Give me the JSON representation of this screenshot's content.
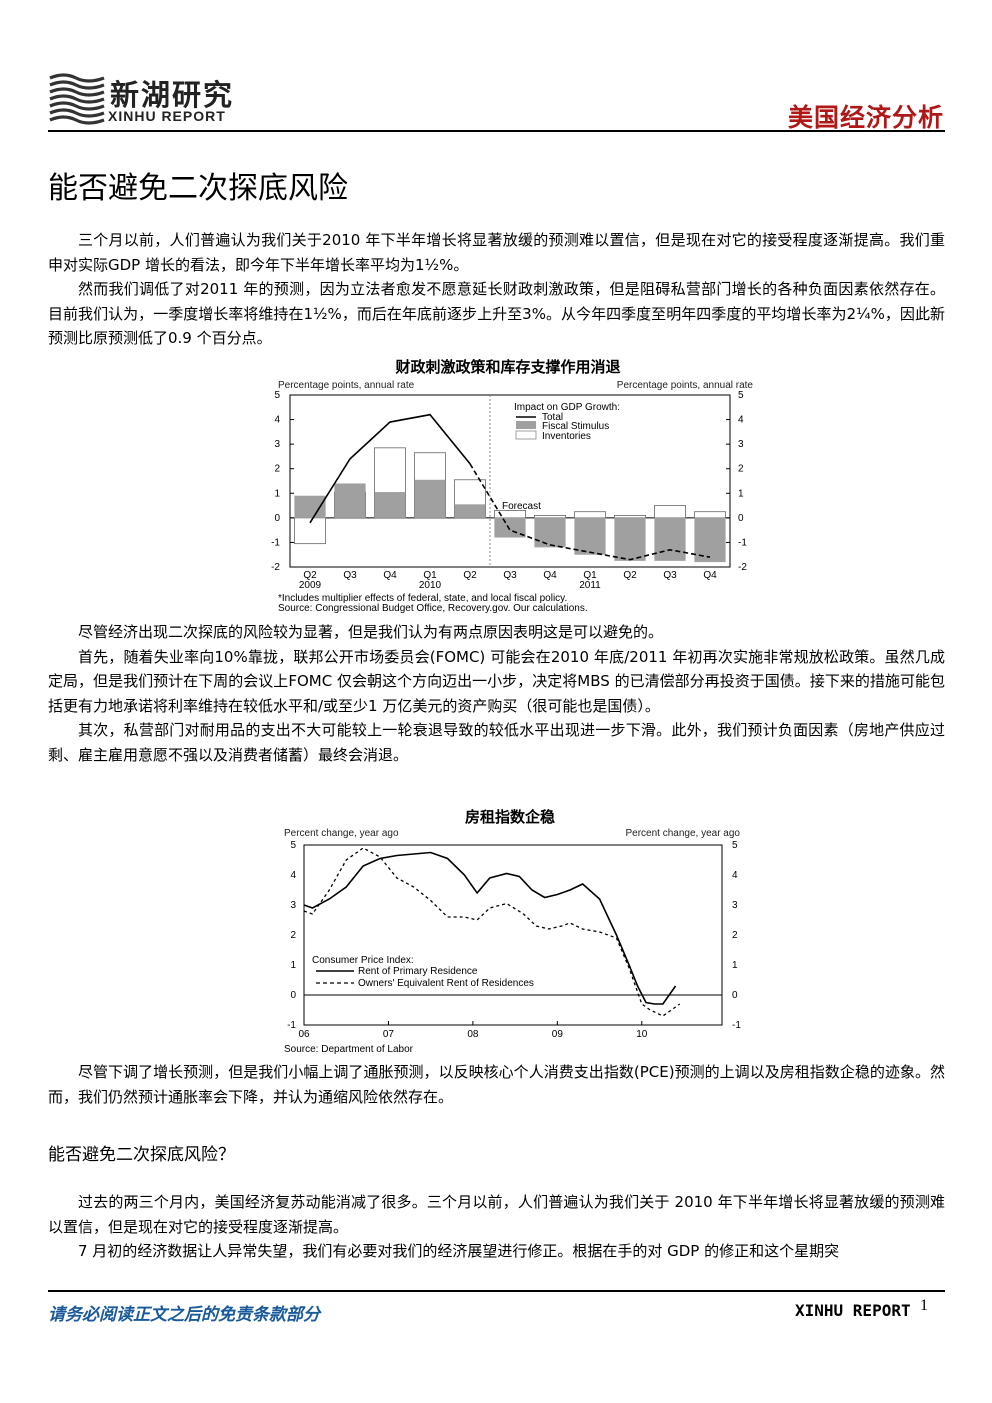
{
  "header": {
    "logo_cn": "新湖研究",
    "logo_en": "XINHU REPORT",
    "section": "美国经济分析"
  },
  "title": "能否避免二次探底风险",
  "paragraphs_a": [
    "三个月以前，人们普遍认为我们关于2010 年下半年增长将显著放缓的预测难以置信，但是现在对它的接受程度逐渐提高。我们重申对实际GDP 增长的看法，即今年下半年增长率平均为1½%。",
    "然而我们调低了对2011 年的预测，因为立法者愈发不愿意延长财政刺激政策，但是阻碍私营部门增长的各种负面因素依然存在。目前我们认为，一季度增长率将维持在1½%，而后在年底前逐步上升至3%。从今年四季度至明年四季度的平均增长率为2¼%，因此新预测比原预测低了0.9 个百分点。"
  ],
  "chart1": {
    "title": "财政刺激政策和库存支撑作用消退",
    "left_axis_label": "Percentage points, annual rate",
    "right_axis_label": "Percentage points, annual rate",
    "legend_title": "Impact on GDP Growth:",
    "forecast_label": "Forecast",
    "note": "*Includes multiplier effects of federal, state, and local fiscal policy.",
    "source": "Source: Congressional Budget Office, Recovery.gov. Our calculations."
  },
  "paragraphs_b": [
    "尽管经济出现二次探底的风险较为显著，但是我们认为有两点原因表明这是可以避免的。",
    "首先，随着失业率向10%靠拢，联邦公开市场委员会(FOMC) 可能会在2010 年底/2011 年初再次实施非常规放松政策。虽然几成定局，但是我们预计在下周的会议上FOMC 仅会朝这个方向迈出一小步，决定将MBS 的已清偿部分再投资于国债。接下来的措施可能包括更有力地承诺将利率维持在较低水平和/或至少1 万亿美元的资产购买（很可能也是国债）。",
    "其次，私营部门对耐用品的支出不大可能较上一轮衰退导致的较低水平出现进一步下滑。此外，我们预计负面因素（房地产供应过剩、雇主雇用意愿不强以及消费者储蓄）最终会消退。"
  ],
  "chart2": {
    "title": "房租指数企稳",
    "left_axis_label": "Percent change, year ago",
    "right_axis_label": "Percent change, year ago",
    "legend_title": "Consumer Price Index:",
    "source": "Source: Department of Labor"
  },
  "paragraph_c": "尽管下调了增长预测，但是我们小幅上调了通胀预测，以反映核心个人消费支出指数(PCE)预测的上调以及房租指数企稳的迹象。然而，我们仍然预计通胀率会下降，并认为通缩风险依然存在。",
  "subheading": "能否避免二次探底风险？",
  "paragraphs_d": [
    "过去的两三个月内，美国经济复苏动能消减了很多。三个月以前，人们普遍认为我们关于 2010 年下半年增长将显著放缓的预测难以置信，但是现在对它的接受程度逐渐提高。",
    "7 月初的经济数据让人异常失望，我们有必要对我们的经济展望进行修正。根据在手的对 GDP 的修正和这个星期突"
  ],
  "footer": {
    "disclaimer": "请务必阅读正文之后的免责条款部分",
    "brand": "XINHU REPORT",
    "page": "1"
  },
  "chart_data": [
    {
      "type": "bar",
      "title": "财政刺激政策和库存支撑作用消退",
      "categories": [
        "Q2 2009",
        "Q3",
        "Q4",
        "Q1 2010",
        "Q2",
        "Q3",
        "Q4",
        "Q1 2011",
        "Q2",
        "Q3",
        "Q4"
      ],
      "x_tick_labels": [
        "Q2",
        "Q3",
        "Q4",
        "Q1",
        "Q2",
        "Q3",
        "Q4",
        "Q1",
        "Q2",
        "Q3",
        "Q4"
      ],
      "x_year_labels": [
        {
          "after": 0,
          "text": "2009"
        },
        {
          "after": 3,
          "text": "2010"
        },
        {
          "after": 7,
          "text": "2011"
        }
      ],
      "ylim": [
        -2,
        5
      ],
      "yticks": [
        -2,
        -1,
        0,
        1,
        2,
        3,
        4,
        5
      ],
      "series": [
        {
          "name": "Total",
          "kind": "line",
          "values": [
            -0.2,
            2.4,
            3.9,
            4.2,
            2.2,
            -0.5,
            -1.1,
            -1.4,
            -1.7,
            -1.3,
            -1.6
          ]
        },
        {
          "name": "Fiscal Stimulus",
          "kind": "bar",
          "fill": "#a0a0a0",
          "values": [
            0.9,
            1.4,
            1.05,
            1.55,
            0.55,
            -0.8,
            -1.2,
            -1.5,
            -1.75,
            -1.75,
            -1.8
          ]
        },
        {
          "name": "Inventories",
          "kind": "bar",
          "fill": "#ffffff",
          "values": [
            -1.05,
            1.05,
            2.85,
            2.65,
            1.55,
            0.3,
            0.1,
            0.25,
            0.1,
            0.5,
            0.25
          ]
        }
      ],
      "forecast_start_index": 5,
      "left_axis_label": "Percentage points, annual rate",
      "right_axis_label": "Percentage points, annual rate",
      "legend_title": "Impact on GDP Growth:",
      "legend": "top-right"
    },
    {
      "type": "line",
      "title": "房租指数企稳",
      "x_tick_labels": [
        "06",
        "07",
        "08",
        "09",
        "10"
      ],
      "xlim": [
        2006.0,
        2010.95
      ],
      "ylim": [
        -1,
        5
      ],
      "yticks": [
        -1,
        0,
        1,
        2,
        3,
        4,
        5
      ],
      "series": [
        {
          "name": "Rent of Primary Residence",
          "style": "solid",
          "x": [
            2006.0,
            2006.1,
            2006.3,
            2006.5,
            2006.7,
            2006.9,
            2007.1,
            2007.3,
            2007.5,
            2007.7,
            2007.9,
            2008.05,
            2008.2,
            2008.4,
            2008.55,
            2008.7,
            2008.85,
            2009.0,
            2009.15,
            2009.3,
            2009.5,
            2009.7,
            2009.85,
            2009.95,
            2010.05,
            2010.15,
            2010.25,
            2010.4
          ],
          "y": [
            3.0,
            2.9,
            3.2,
            3.6,
            4.3,
            4.55,
            4.65,
            4.7,
            4.75,
            4.55,
            4.0,
            3.4,
            3.9,
            4.05,
            3.95,
            3.5,
            3.25,
            3.35,
            3.5,
            3.7,
            3.2,
            2.0,
            1.0,
            0.3,
            -0.25,
            -0.3,
            -0.3,
            0.3
          ]
        },
        {
          "name": "Owners' Equivalent Rent of Residences",
          "style": "dashed",
          "x": [
            2006.0,
            2006.1,
            2006.3,
            2006.5,
            2006.7,
            2006.9,
            2007.1,
            2007.3,
            2007.5,
            2007.7,
            2007.9,
            2008.05,
            2008.2,
            2008.4,
            2008.6,
            2008.75,
            2008.9,
            2009.05,
            2009.15,
            2009.3,
            2009.5,
            2009.7,
            2009.85,
            2010.0,
            2010.1,
            2010.25,
            2010.35,
            2010.45
          ],
          "y": [
            2.8,
            2.7,
            3.5,
            4.5,
            4.9,
            4.6,
            3.9,
            3.6,
            3.15,
            2.6,
            2.6,
            2.5,
            2.9,
            3.05,
            2.7,
            2.3,
            2.2,
            2.3,
            2.4,
            2.2,
            2.1,
            1.9,
            0.9,
            -0.3,
            -0.5,
            -0.7,
            -0.5,
            -0.3
          ]
        }
      ],
      "left_axis_label": "Percent change, year ago",
      "right_axis_label": "Percent change, year ago",
      "legend_title": "Consumer Price Index:",
      "legend": "bottom-left"
    }
  ]
}
